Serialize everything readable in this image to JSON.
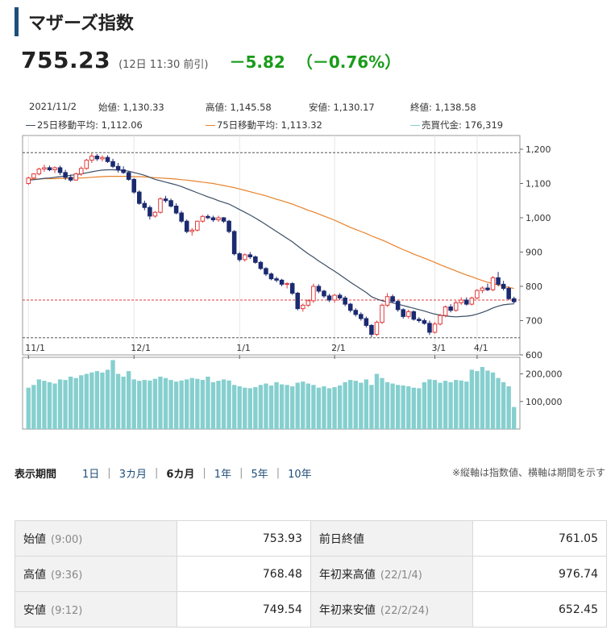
{
  "header": {
    "title": "マザーズ指数",
    "price": "755.23",
    "time": "(12日 11:30 前引)",
    "change": "－5.82",
    "change_pct": "（－0.76%）"
  },
  "ohlc_info": {
    "date": "2021/11/2",
    "open": "始値: 1,130.33",
    "high": "高値: 1,145.58",
    "low": "安値: 1,130.17",
    "close": "終値: 1,138.58",
    "ma25": "25日移動平均: 1,112.06",
    "ma75": "75日移動平均: 1,113.32",
    "volume": "売買代金: 176,319"
  },
  "colors": {
    "up": "#e03a3a",
    "down": "#1b2a70",
    "ma25": "#3c4e65",
    "ma75": "#e8822a",
    "volume": "#86cfcf",
    "change": "#1a9c1a",
    "accent": "#1f4e79"
  },
  "chart_data": {
    "type": "candlestick",
    "x_labels": [
      "11/1",
      "12/1",
      "1/1",
      "2/1",
      "3/1",
      "4/1"
    ],
    "y_ticks": [
      "1,200",
      "1,100",
      "1,000",
      "900",
      "800",
      "700",
      "600"
    ],
    "ylim": [
      600,
      1240
    ],
    "vol_ticks": [
      "200,000",
      "100,000"
    ],
    "vol_lim": [
      0,
      260000
    ],
    "guide_lines": [
      1190,
      650,
      760
    ],
    "ohlc": [
      [
        1100,
        1120,
        1096,
        1116
      ],
      [
        1116,
        1130,
        1112,
        1128
      ],
      [
        1128,
        1146,
        1124,
        1142
      ],
      [
        1142,
        1155,
        1134,
        1146
      ],
      [
        1146,
        1152,
        1136,
        1140
      ],
      [
        1140,
        1150,
        1130,
        1146
      ],
      [
        1146,
        1152,
        1125,
        1132
      ],
      [
        1132,
        1140,
        1110,
        1118
      ],
      [
        1118,
        1126,
        1105,
        1110
      ],
      [
        1110,
        1132,
        1108,
        1128
      ],
      [
        1128,
        1150,
        1122,
        1144
      ],
      [
        1144,
        1172,
        1140,
        1168
      ],
      [
        1168,
        1188,
        1160,
        1180
      ],
      [
        1180,
        1186,
        1166,
        1172
      ],
      [
        1172,
        1182,
        1164,
        1176
      ],
      [
        1176,
        1182,
        1160,
        1164
      ],
      [
        1164,
        1172,
        1145,
        1150
      ],
      [
        1150,
        1160,
        1132,
        1140
      ],
      [
        1140,
        1150,
        1128,
        1132
      ],
      [
        1132,
        1136,
        1108,
        1112
      ],
      [
        1112,
        1116,
        1070,
        1075
      ],
      [
        1075,
        1080,
        1038,
        1042
      ],
      [
        1042,
        1050,
        1022,
        1030
      ],
      [
        1030,
        1036,
        995,
        1005
      ],
      [
        1005,
        1020,
        1000,
        1016
      ],
      [
        1016,
        1060,
        1012,
        1055
      ],
      [
        1055,
        1064,
        1044,
        1050
      ],
      [
        1050,
        1056,
        1030,
        1034
      ],
      [
        1034,
        1042,
        1010,
        1014
      ],
      [
        1014,
        1020,
        985,
        990
      ],
      [
        990,
        995,
        955,
        960
      ],
      [
        960,
        970,
        948,
        964
      ],
      [
        964,
        992,
        960,
        990
      ],
      [
        990,
        1008,
        986,
        1004
      ],
      [
        1004,
        1010,
        996,
        1000
      ],
      [
        1000,
        1006,
        988,
        994
      ],
      [
        994,
        1006,
        988,
        1000
      ],
      [
        1000,
        1002,
        985,
        990
      ],
      [
        990,
        994,
        955,
        960
      ],
      [
        960,
        964,
        890,
        895
      ],
      [
        895,
        900,
        872,
        878
      ],
      [
        878,
        896,
        872,
        892
      ],
      [
        892,
        900,
        880,
        886
      ],
      [
        886,
        890,
        866,
        870
      ],
      [
        870,
        874,
        848,
        852
      ],
      [
        852,
        856,
        830,
        836
      ],
      [
        836,
        840,
        818,
        822
      ],
      [
        822,
        828,
        812,
        818
      ],
      [
        818,
        822,
        800,
        806
      ],
      [
        806,
        812,
        794,
        808
      ],
      [
        808,
        812,
        775,
        780
      ],
      [
        780,
        784,
        730,
        735
      ],
      [
        735,
        750,
        726,
        745
      ],
      [
        745,
        762,
        740,
        758
      ],
      [
        758,
        808,
        752,
        800
      ],
      [
        800,
        806,
        780,
        786
      ],
      [
        786,
        790,
        766,
        772
      ],
      [
        772,
        778,
        754,
        760
      ],
      [
        760,
        778,
        752,
        774
      ],
      [
        774,
        780,
        760,
        766
      ],
      [
        766,
        772,
        742,
        748
      ],
      [
        748,
        752,
        724,
        730
      ],
      [
        730,
        736,
        712,
        718
      ],
      [
        718,
        724,
        700,
        706
      ],
      [
        706,
        712,
        680,
        686
      ],
      [
        686,
        690,
        652,
        660
      ],
      [
        660,
        700,
        655,
        695
      ],
      [
        695,
        750,
        690,
        745
      ],
      [
        745,
        780,
        740,
        770
      ],
      [
        770,
        776,
        752,
        756
      ],
      [
        756,
        760,
        726,
        732
      ],
      [
        732,
        736,
        706,
        712
      ],
      [
        712,
        732,
        706,
        726
      ],
      [
        726,
        730,
        700,
        704
      ],
      [
        704,
        710,
        694,
        700
      ],
      [
        700,
        706,
        688,
        692
      ],
      [
        692,
        700,
        658,
        666
      ],
      [
        666,
        696,
        662,
        690
      ],
      [
        690,
        720,
        686,
        715
      ],
      [
        715,
        744,
        710,
        740
      ],
      [
        740,
        748,
        724,
        730
      ],
      [
        730,
        758,
        726,
        752
      ],
      [
        752,
        768,
        746,
        760
      ],
      [
        760,
        768,
        744,
        748
      ],
      [
        748,
        770,
        744,
        766
      ],
      [
        766,
        792,
        762,
        788
      ],
      [
        788,
        800,
        780,
        795
      ],
      [
        795,
        808,
        786,
        790
      ],
      [
        790,
        830,
        786,
        825
      ],
      [
        825,
        842,
        800,
        806
      ],
      [
        806,
        816,
        788,
        794
      ],
      [
        794,
        800,
        760,
        764
      ],
      [
        764,
        770,
        750,
        755
      ]
    ],
    "ma25": [
      1110,
      1111,
      1113,
      1115,
      1116,
      1118,
      1120,
      1122,
      1124,
      1126,
      1128,
      1131,
      1134,
      1137,
      1139,
      1140,
      1140,
      1139,
      1138,
      1136,
      1132,
      1128,
      1124,
      1118,
      1112,
      1108,
      1104,
      1100,
      1096,
      1091,
      1085,
      1079,
      1073,
      1067,
      1061,
      1056,
      1050,
      1045,
      1040,
      1032,
      1024,
      1016,
      1008,
      999,
      990,
      980,
      970,
      960,
      950,
      940,
      930,
      918,
      906,
      895,
      885,
      874,
      864,
      854,
      844,
      834,
      823,
      812,
      802,
      792,
      782,
      770,
      763,
      758,
      755,
      752,
      748,
      744,
      740,
      736,
      732,
      728,
      723,
      719,
      716,
      714,
      712,
      711,
      712,
      713,
      715,
      719,
      724,
      730,
      737,
      742,
      746,
      748,
      749
    ],
    "ma75": [
      1112,
      1113,
      1113,
      1114,
      1114,
      1114,
      1115,
      1115,
      1115,
      1116,
      1116,
      1117,
      1118,
      1119,
      1120,
      1121,
      1121,
      1121,
      1121,
      1121,
      1120,
      1120,
      1119,
      1118,
      1117,
      1116,
      1115,
      1114,
      1113,
      1111,
      1110,
      1108,
      1106,
      1104,
      1102,
      1100,
      1097,
      1094,
      1091,
      1088,
      1084,
      1080,
      1076,
      1072,
      1068,
      1064,
      1059,
      1054,
      1050,
      1045,
      1040,
      1034,
      1028,
      1022,
      1017,
      1011,
      1005,
      999,
      993,
      986,
      979,
      972,
      966,
      960,
      954,
      947,
      941,
      935,
      928,
      921,
      914,
      907,
      901,
      894,
      888,
      882,
      876,
      870,
      863,
      857,
      851,
      845,
      839,
      833,
      828,
      822,
      817,
      812,
      808,
      804,
      800,
      797,
      794
    ],
    "volume": [
      150000,
      160000,
      180000,
      175000,
      170000,
      165000,
      180000,
      178000,
      190000,
      185000,
      195000,
      200000,
      205000,
      210000,
      205000,
      215000,
      250000,
      200000,
      190000,
      210000,
      180000,
      175000,
      178000,
      176000,
      182000,
      190000,
      185000,
      178000,
      172000,
      176000,
      180000,
      185000,
      182000,
      178000,
      190000,
      170000,
      175000,
      180000,
      176000,
      160000,
      155000,
      150000,
      148000,
      152000,
      160000,
      165000,
      158000,
      170000,
      162000,
      160000,
      155000,
      168000,
      172000,
      165000,
      160000,
      150000,
      155000,
      148000,
      152000,
      158000,
      170000,
      178000,
      175000,
      168000,
      180000,
      160000,
      200000,
      185000,
      170000,
      165000,
      160000,
      158000,
      155000,
      150000,
      148000,
      170000,
      180000,
      178000,
      168000,
      175000,
      170000,
      178000,
      176000,
      172000,
      215000,
      210000,
      225000,
      212000,
      205000,
      185000,
      170000,
      155000,
      80000
    ]
  },
  "period": {
    "label": "表示期間",
    "options": [
      "1日",
      "3カ月",
      "6カ月",
      "1年",
      "5年",
      "10年"
    ],
    "selected": "6カ月",
    "note": "※縦軸は指数値、横軸は期間を示す"
  },
  "stats": {
    "open_label": "始値",
    "open_time": "(9:00)",
    "open_value": "753.93",
    "prev_label": "前日終値",
    "prev_value": "761.05",
    "high_label": "高値",
    "high_time": "(9:36)",
    "high_value": "768.48",
    "ytd_high_label": "年初来高値",
    "ytd_high_date": "(22/1/4)",
    "ytd_high_value": "976.74",
    "low_label": "安値",
    "low_time": "(9:12)",
    "low_value": "749.54",
    "ytd_low_label": "年初来安値",
    "ytd_low_date": "(22/2/24)",
    "ytd_low_value": "652.45"
  }
}
